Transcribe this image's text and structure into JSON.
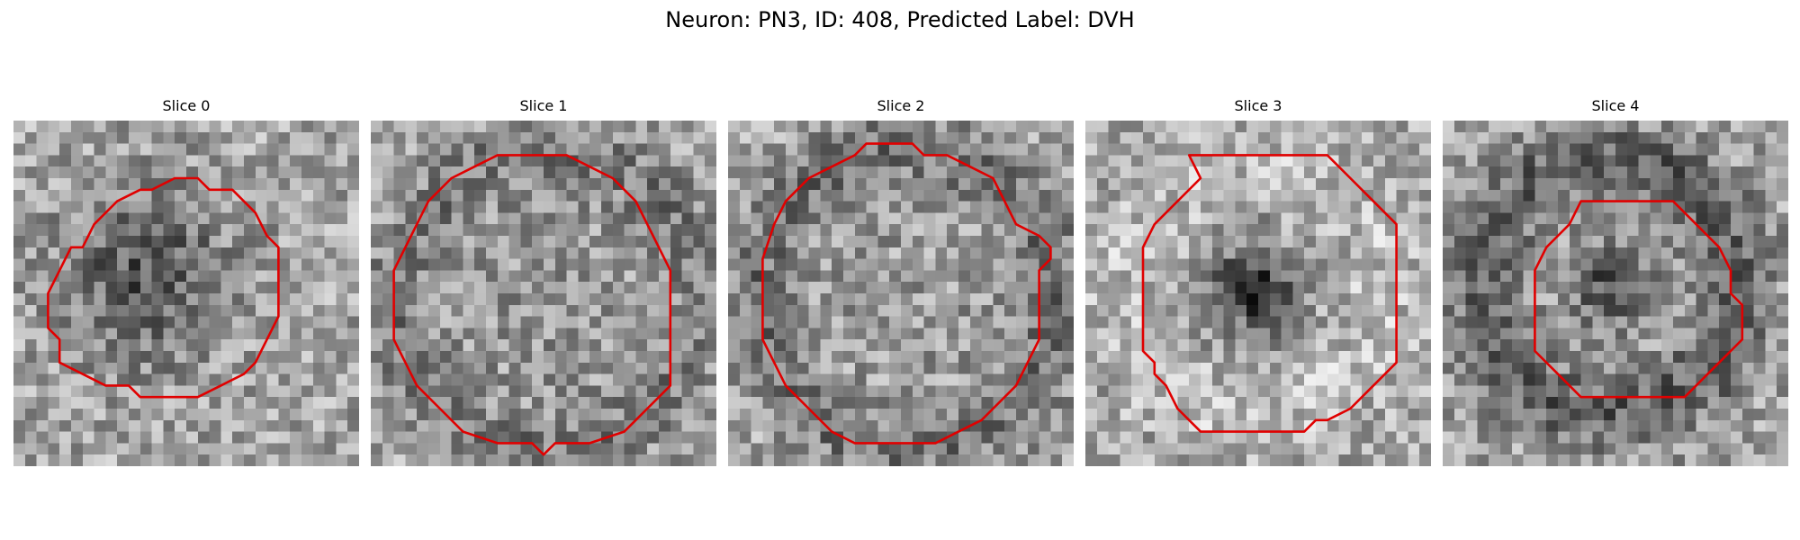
{
  "figure": {
    "title": "Neuron: PN3, ID: 408, Predicted Label: DVH",
    "outline_color": "#e00000",
    "colormap": "gray"
  },
  "panels": [
    {
      "title": "Slice 0"
    },
    {
      "title": "Slice 1"
    },
    {
      "title": "Slice 2"
    },
    {
      "title": "Slice 3"
    },
    {
      "title": "Slice 4"
    }
  ]
}
